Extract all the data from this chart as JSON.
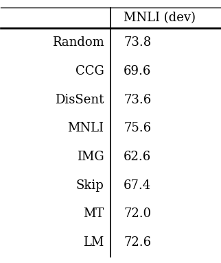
{
  "header": [
    "",
    "MNLI (dev)"
  ],
  "rows": [
    [
      "Random",
      "73.8"
    ],
    [
      "CCG",
      "69.6"
    ],
    [
      "DisSent",
      "73.6"
    ],
    [
      "MNLI",
      "75.6"
    ],
    [
      "IMG",
      "62.6"
    ],
    [
      "Skip",
      "67.4"
    ],
    [
      "MT",
      "72.0"
    ],
    [
      "LM",
      "72.6"
    ]
  ],
  "font_size": 13,
  "header_font_size": 13,
  "bg_color": "#ffffff",
  "text_color": "#000000"
}
